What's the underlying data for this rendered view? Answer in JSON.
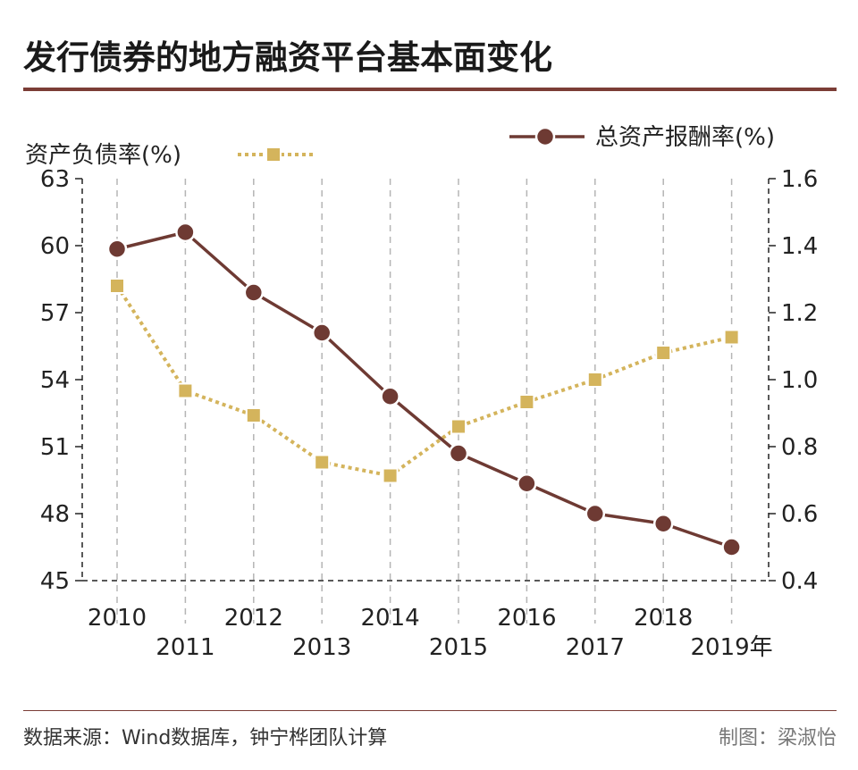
{
  "title": "发行债券的地方融资平台基本面变化",
  "source": "数据来源：Wind数据库，钟宁桦团队计算",
  "credit": "制图：梁淑怡",
  "chart_data": {
    "type": "line",
    "categories": [
      "2010",
      "2011",
      "2012",
      "2013",
      "2014",
      "2015",
      "2016",
      "2017",
      "2018",
      "2019年"
    ],
    "series": [
      {
        "name": "资产负债率(%)",
        "axis": "left",
        "color": "#d4b45c",
        "marker": "square",
        "line_style": "dotted",
        "values": [
          58.2,
          53.5,
          52.4,
          50.3,
          49.7,
          51.9,
          53.0,
          54.0,
          55.2,
          55.9
        ]
      },
      {
        "name": "总资产报酬率(%)",
        "axis": "right",
        "color": "#6e3a33",
        "marker": "circle",
        "line_style": "solid",
        "values": [
          1.39,
          1.44,
          1.26,
          1.14,
          0.95,
          0.78,
          0.69,
          0.6,
          0.57,
          0.5
        ]
      }
    ],
    "y_left": {
      "range": [
        45,
        63
      ],
      "ticks": [
        "45",
        "48",
        "51",
        "54",
        "57",
        "60",
        "63"
      ]
    },
    "y_right": {
      "range": [
        0.4,
        1.6
      ],
      "ticks": [
        "0.4",
        "0.6",
        "0.8",
        "1.0",
        "1.2",
        "1.4",
        "1.6"
      ]
    },
    "grid": "vertical dashed",
    "legend_placement": "top"
  }
}
